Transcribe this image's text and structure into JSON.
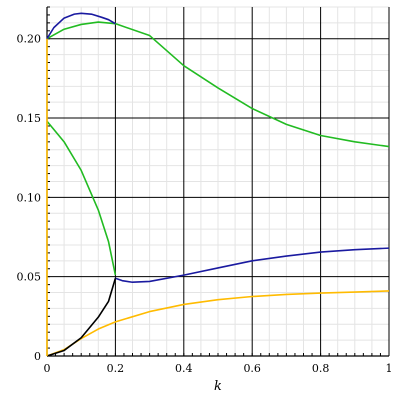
{
  "chart_data": {
    "type": "line",
    "xlabel": "k",
    "ylabel": "",
    "xlim": [
      0,
      1
    ],
    "ylim": [
      0,
      0.22
    ],
    "grid": true,
    "x_ticks": [
      "0",
      "0.2",
      "0.4",
      "0.6",
      "0.8",
      "1"
    ],
    "y_ticks": [
      "0",
      "0.05",
      "0.10",
      "0.15",
      "0.20"
    ],
    "x_tick_values": [
      0,
      0.2,
      0.4,
      0.6,
      0.8,
      1
    ],
    "y_tick_values": [
      0,
      0.05,
      0.1,
      0.15,
      0.2
    ],
    "series": [
      {
        "color": "#22bb22",
        "points": [
          [
            0,
            0.2
          ],
          [
            0.05,
            0.206
          ],
          [
            0.1,
            0.209
          ],
          [
            0.15,
            0.2105
          ],
          [
            0.2,
            0.2095
          ],
          [
            0.3,
            0.202
          ],
          [
            0.4,
            0.183
          ],
          [
            0.5,
            0.169
          ],
          [
            0.6,
            0.156
          ],
          [
            0.7,
            0.146
          ],
          [
            0.8,
            0.139
          ],
          [
            0.9,
            0.135
          ],
          [
            1.0,
            0.132
          ]
        ]
      },
      {
        "color": "#22bb22",
        "points": [
          [
            0,
            0.148
          ],
          [
            0.05,
            0.135
          ],
          [
            0.1,
            0.117
          ],
          [
            0.15,
            0.092
          ],
          [
            0.18,
            0.072
          ],
          [
            0.2,
            0.051
          ]
        ]
      },
      {
        "color": "#1a1aa0",
        "points": [
          [
            0,
            0.2
          ],
          [
            0.02,
            0.207
          ],
          [
            0.05,
            0.213
          ],
          [
            0.08,
            0.2155
          ],
          [
            0.1,
            0.216
          ],
          [
            0.13,
            0.2155
          ],
          [
            0.16,
            0.2135
          ],
          [
            0.18,
            0.212
          ],
          [
            0.2,
            0.2095
          ]
        ]
      },
      {
        "color": "#1a1aa0",
        "points": [
          [
            0.2,
            0.049
          ],
          [
            0.22,
            0.0475
          ],
          [
            0.25,
            0.0465
          ],
          [
            0.3,
            0.047
          ],
          [
            0.4,
            0.051
          ],
          [
            0.5,
            0.0555
          ],
          [
            0.6,
            0.06
          ],
          [
            0.7,
            0.063
          ],
          [
            0.8,
            0.0655
          ],
          [
            0.9,
            0.067
          ],
          [
            1.0,
            0.068
          ]
        ]
      },
      {
        "color": "#ffbb00",
        "points": [
          [
            0,
            0
          ],
          [
            0.05,
            0.004
          ],
          [
            0.1,
            0.011
          ],
          [
            0.15,
            0.017
          ],
          [
            0.2,
            0.0215
          ],
          [
            0.3,
            0.028
          ],
          [
            0.4,
            0.0325
          ],
          [
            0.5,
            0.0355
          ],
          [
            0.6,
            0.0375
          ],
          [
            0.7,
            0.0388
          ],
          [
            0.8,
            0.0397
          ],
          [
            0.9,
            0.0403
          ],
          [
            1.0,
            0.041
          ]
        ]
      },
      {
        "color": "#000000",
        "points": [
          [
            0,
            0
          ],
          [
            0.05,
            0.0035
          ],
          [
            0.1,
            0.0115
          ],
          [
            0.15,
            0.0245
          ],
          [
            0.18,
            0.0345
          ],
          [
            0.2,
            0.049
          ]
        ]
      },
      {
        "color": "#ffbb00",
        "points": [
          [
            0,
            0
          ],
          [
            0,
            0.2
          ]
        ]
      }
    ]
  }
}
